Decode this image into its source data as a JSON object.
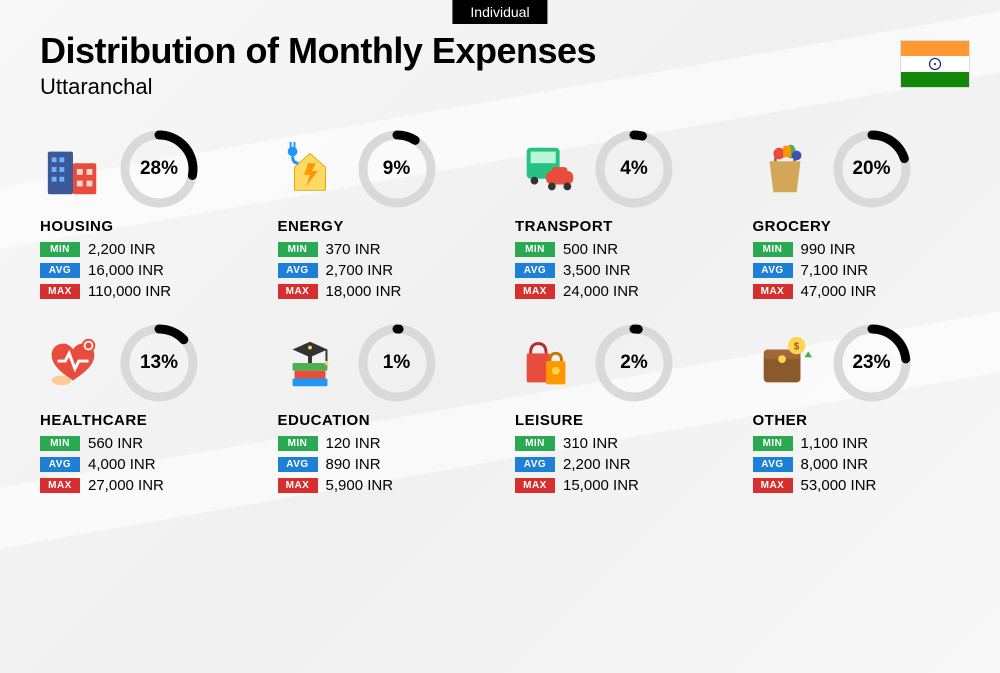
{
  "badge": "Individual",
  "title": "Distribution of Monthly Expenses",
  "subtitle": "Uttaranchal",
  "labels": {
    "min": "MIN",
    "avg": "AVG",
    "max": "MAX"
  },
  "currency": "INR",
  "ring": {
    "radius": 34,
    "stroke_width": 9,
    "bg_color": "#d9d9d9",
    "fg_color": "#000000"
  },
  "tag_colors": {
    "min": "#2aa952",
    "avg": "#1e7fd6",
    "max": "#d62f2f"
  },
  "flag": {
    "saffron": "#ff9933",
    "white": "#ffffff",
    "green": "#138808",
    "chakra": "#000080"
  },
  "categories": [
    {
      "name": "HOUSING",
      "percent": 28,
      "min": "2,200 INR",
      "avg": "16,000 INR",
      "max": "110,000 INR",
      "icon": "housing"
    },
    {
      "name": "ENERGY",
      "percent": 9,
      "min": "370 INR",
      "avg": "2,700 INR",
      "max": "18,000 INR",
      "icon": "energy"
    },
    {
      "name": "TRANSPORT",
      "percent": 4,
      "min": "500 INR",
      "avg": "3,500 INR",
      "max": "24,000 INR",
      "icon": "transport"
    },
    {
      "name": "GROCERY",
      "percent": 20,
      "min": "990 INR",
      "avg": "7,100 INR",
      "max": "47,000 INR",
      "icon": "grocery"
    },
    {
      "name": "HEALTHCARE",
      "percent": 13,
      "min": "560 INR",
      "avg": "4,000 INR",
      "max": "27,000 INR",
      "icon": "healthcare"
    },
    {
      "name": "EDUCATION",
      "percent": 1,
      "min": "120 INR",
      "avg": "890 INR",
      "max": "5,900 INR",
      "icon": "education"
    },
    {
      "name": "LEISURE",
      "percent": 2,
      "min": "310 INR",
      "avg": "2,200 INR",
      "max": "15,000 INR",
      "icon": "leisure"
    },
    {
      "name": "OTHER",
      "percent": 23,
      "min": "1,100 INR",
      "avg": "8,000 INR",
      "max": "53,000 INR",
      "icon": "other"
    }
  ]
}
